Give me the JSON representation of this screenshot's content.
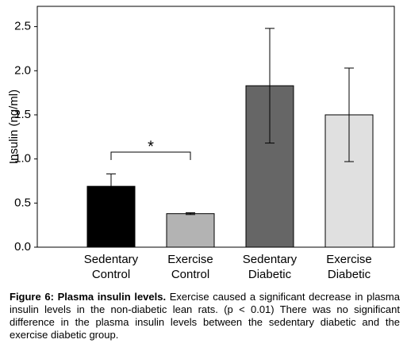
{
  "chart_data": {
    "type": "bar",
    "y_label": "Insulin (ng/ml)",
    "categories": [
      "Sedentary Control",
      "Exercise Control",
      "Sedentary Diabetic",
      "Exercise Diabetic"
    ],
    "values": [
      0.69,
      0.38,
      1.83,
      1.5
    ],
    "errors": [
      0.14,
      0.01,
      0.65,
      0.53
    ],
    "colors": [
      "#000000",
      "#b3b3b3",
      "#666666",
      "#e0e0e0"
    ],
    "ylim": [
      0,
      2.73
    ],
    "yticks": [
      {
        "value": 0,
        "label": "0.0"
      },
      0.5,
      {
        "value": 1,
        "label": "1.0"
      },
      1.5,
      {
        "value": 2,
        "label": "2.0"
      },
      2.5
    ],
    "annotation": "*"
  },
  "caption": {
    "label": "Figure 6: Plasma insulin levels.",
    "text": "Exercise caused a significant decrease in plasma insulin levels in the non-diabetic lean rats. (p < 0.01) There was no significant difference in the plasma insulin levels between the sedentary diabetic and the exercise diabetic group."
  }
}
